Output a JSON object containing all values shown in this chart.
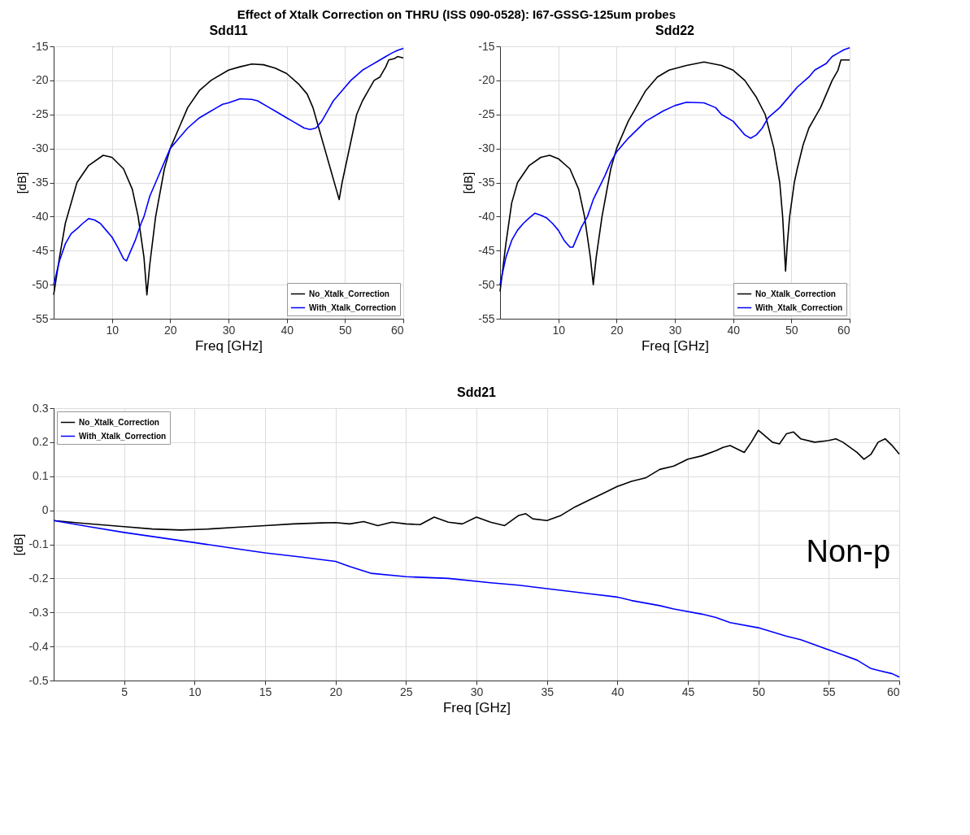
{
  "chart_data": [
    {
      "type": "line",
      "title": "Sdd11",
      "xlabel": "Freq [GHz]",
      "ylabel": "[dB]",
      "annotations": [
        "Effect of Xtalk Correction on THRU (ISS 090-0528): I67-GSSG-125um probes"
      ],
      "xlim": [
        0,
        60
      ],
      "xticks": [
        10,
        20,
        30,
        40,
        50,
        60
      ],
      "ylim": [
        -55,
        -15
      ],
      "yticks": [
        -55,
        -50,
        -45,
        -40,
        -35,
        -30,
        -25,
        -20,
        -15
      ],
      "grid": true,
      "legend": "bottom right",
      "marker": "none",
      "line_style": "solid",
      "series": [
        {
          "name": "No_Xtalk_Correction",
          "color": "#000000",
          "x": [
            0,
            1,
            2,
            4,
            6,
            8.5,
            10,
            12,
            13.5,
            14.5,
            15.5,
            16,
            16.5,
            17.5,
            19,
            20,
            21.5,
            23,
            25,
            27,
            30,
            32,
            34,
            36,
            38,
            40,
            42,
            43.5,
            44.5,
            45.5,
            46.5,
            47.5,
            48.5,
            49,
            49.5,
            50,
            51,
            52,
            53,
            54,
            55,
            56,
            57,
            57.5,
            58.5,
            59,
            60
          ],
          "values": [
            -51.5,
            -46,
            -41,
            -35,
            -32.5,
            -31,
            -31.3,
            -33,
            -36,
            -40,
            -46,
            -51.5,
            -47,
            -40,
            -33,
            -30,
            -27,
            -24,
            -21.5,
            -20,
            -18.5,
            -18,
            -17.6,
            -17.7,
            -18.2,
            -19,
            -20.5,
            -22,
            -24,
            -27,
            -30,
            -33,
            -36,
            -37.5,
            -35,
            -33,
            -29,
            -25,
            -23,
            -21.5,
            -20,
            -19.5,
            -18,
            -17,
            -16.8,
            -16.5,
            -16.7
          ]
        },
        {
          "name": "With_Xtalk_Correction",
          "color": "#0000ff",
          "x": [
            0,
            1,
            2,
            3,
            4,
            5,
            6,
            7,
            8,
            9,
            10,
            11,
            12,
            12.5,
            13,
            14,
            15,
            15.5,
            16.5,
            17.5,
            19,
            20,
            21.5,
            23,
            25,
            26,
            28,
            29,
            30,
            32,
            34,
            35,
            37,
            38,
            40,
            41,
            43,
            44,
            45,
            46,
            47,
            48,
            50,
            51,
            53,
            54,
            56,
            57,
            58,
            59,
            60
          ],
          "values": [
            -50,
            -46.5,
            -44,
            -42.5,
            -41.8,
            -41,
            -40.3,
            -40.5,
            -41,
            -42,
            -43,
            -44.5,
            -46.2,
            -46.5,
            -45.5,
            -43.5,
            -41,
            -40,
            -37,
            -35,
            -32,
            -30,
            -28.5,
            -27,
            -25.5,
            -25,
            -24,
            -23.5,
            -23.3,
            -22.7,
            -22.8,
            -23,
            -24,
            -24.5,
            -25.5,
            -26,
            -27,
            -27.2,
            -27,
            -26,
            -24.5,
            -23,
            -21,
            -20,
            -18.5,
            -18,
            -17,
            -16.5,
            -16,
            -15.6,
            -15.3
          ]
        }
      ]
    },
    {
      "type": "line",
      "title": "Sdd22",
      "xlabel": "Freq [GHz]",
      "ylabel": "[dB]",
      "xlim": [
        0,
        60
      ],
      "xticks": [
        10,
        20,
        30,
        40,
        50,
        60
      ],
      "ylim": [
        -55,
        -15
      ],
      "yticks": [
        -55,
        -50,
        -45,
        -40,
        -35,
        -30,
        -25,
        -20,
        -15
      ],
      "grid": true,
      "legend": "bottom right",
      "marker": "none",
      "line_style": "solid",
      "series": [
        {
          "name": "No_Xtalk_Correction",
          "color": "#000000",
          "x": [
            0,
            1,
            2,
            3,
            5,
            7,
            8.5,
            10,
            12,
            13.5,
            14.5,
            15.5,
            16,
            16.5,
            17.5,
            19,
            20,
            22,
            25,
            27,
            29,
            32,
            35,
            38,
            40,
            42,
            44,
            45.5,
            47,
            48,
            48.5,
            49,
            49.3,
            49.7,
            50.5,
            51,
            52,
            53,
            54,
            55,
            56,
            57,
            58,
            58.5,
            59.5,
            60
          ],
          "values": [
            -51,
            -44,
            -38,
            -35,
            -32.5,
            -31.3,
            -31,
            -31.5,
            -33,
            -36,
            -40,
            -46,
            -50,
            -46,
            -40,
            -33,
            -30,
            -26,
            -21.5,
            -19.5,
            -18.5,
            -17.8,
            -17.3,
            -17.8,
            -18.5,
            -20,
            -22.5,
            -25,
            -30,
            -35,
            -40,
            -48,
            -44,
            -40,
            -35,
            -33,
            -29.5,
            -27,
            -25.5,
            -24,
            -22,
            -20,
            -18.5,
            -17,
            -17,
            -17
          ]
        },
        {
          "name": "With_Xtalk_Correction",
          "color": "#0000ff",
          "x": [
            0,
            1,
            2,
            3,
            4,
            5,
            6,
            7,
            8,
            9,
            10,
            11,
            12,
            12.5,
            13,
            14,
            15,
            16,
            18,
            19,
            20,
            22,
            25,
            28,
            30,
            32,
            35,
            37,
            38,
            40,
            41,
            42,
            43,
            44,
            45,
            46,
            48,
            50,
            51,
            53,
            54,
            56,
            57,
            58,
            59,
            60
          ],
          "values": [
            -50,
            -46,
            -43.5,
            -42,
            -41,
            -40.2,
            -39.5,
            -39.8,
            -40.2,
            -41,
            -42,
            -43.5,
            -44.5,
            -44.5,
            -43.5,
            -41.5,
            -40,
            -37.5,
            -34,
            -32,
            -30.5,
            -28.5,
            -26,
            -24.5,
            -23.7,
            -23.2,
            -23.3,
            -24,
            -25,
            -26,
            -27,
            -28,
            -28.5,
            -28,
            -27,
            -25.5,
            -24,
            -22,
            -21,
            -19.5,
            -18.5,
            -17.5,
            -16.5,
            -16,
            -15.5,
            -15.2
          ]
        }
      ]
    },
    {
      "type": "line",
      "title": "Sdd21",
      "xlabel": "Freq [GHz]",
      "ylabel": "[dB]",
      "xlim": [
        0,
        60
      ],
      "xticks": [
        5,
        10,
        15,
        20,
        25,
        30,
        35,
        40,
        45,
        50,
        55,
        60
      ],
      "ylim": [
        -0.5,
        0.3
      ],
      "yticks": [
        -0.5,
        -0.4,
        -0.3,
        -0.2,
        -0.1,
        0,
        0.1,
        0.2,
        0.3
      ],
      "grid": true,
      "legend": "top left",
      "marker": "none",
      "line_style": "solid",
      "annotations": [
        "Non-p"
      ],
      "series": [
        {
          "name": "No_Xtalk_Correction",
          "color": "#000000",
          "x": [
            0,
            2,
            5,
            7,
            9,
            11,
            13,
            15,
            17,
            19,
            20,
            21,
            22,
            23,
            24,
            25,
            26,
            27,
            28,
            29,
            30,
            31,
            32,
            33,
            33.5,
            34,
            35,
            36,
            37,
            38,
            39,
            40,
            41,
            42,
            43,
            44,
            45,
            46,
            47,
            47.5,
            48,
            48.5,
            49,
            49.5,
            50,
            51,
            51.5,
            52,
            52.5,
            53,
            54,
            55,
            55.5,
            56,
            57,
            57.5,
            58,
            58.5,
            59,
            59.5,
            60
          ],
          "values": [
            -0.03,
            -0.038,
            -0.048,
            -0.055,
            -0.058,
            -0.055,
            -0.05,
            -0.045,
            -0.04,
            -0.037,
            -0.036,
            -0.04,
            -0.033,
            -0.045,
            -0.035,
            -0.04,
            -0.042,
            -0.02,
            -0.035,
            -0.04,
            -0.02,
            -0.035,
            -0.045,
            -0.015,
            -0.01,
            -0.025,
            -0.03,
            -0.015,
            0.01,
            0.03,
            0.05,
            0.07,
            0.085,
            0.095,
            0.12,
            0.13,
            0.15,
            0.16,
            0.175,
            0.185,
            0.19,
            0.18,
            0.17,
            0.2,
            0.235,
            0.2,
            0.195,
            0.225,
            0.23,
            0.21,
            0.2,
            0.205,
            0.21,
            0.2,
            0.17,
            0.15,
            0.165,
            0.2,
            0.21,
            0.19,
            0.165
          ]
        },
        {
          "name": "With_Xtalk_Correction",
          "color": "#0000ff",
          "x": [
            0,
            2.5,
            5,
            7.5,
            10,
            12.5,
            15,
            17.5,
            20,
            21,
            22.5,
            25,
            28,
            31,
            33,
            35,
            38,
            40,
            41,
            43,
            44,
            46,
            47,
            48,
            50,
            52,
            53,
            54,
            55,
            56,
            57,
            58,
            58.5,
            59.5,
            60
          ],
          "values": [
            -0.03,
            -0.048,
            -0.065,
            -0.08,
            -0.095,
            -0.11,
            -0.125,
            -0.137,
            -0.15,
            -0.165,
            -0.185,
            -0.195,
            -0.2,
            -0.213,
            -0.22,
            -0.23,
            -0.245,
            -0.255,
            -0.265,
            -0.28,
            -0.29,
            -0.305,
            -0.315,
            -0.33,
            -0.345,
            -0.37,
            -0.38,
            -0.395,
            -0.41,
            -0.425,
            -0.44,
            -0.465,
            -0.47,
            -0.48,
            -0.49
          ]
        }
      ]
    }
  ]
}
